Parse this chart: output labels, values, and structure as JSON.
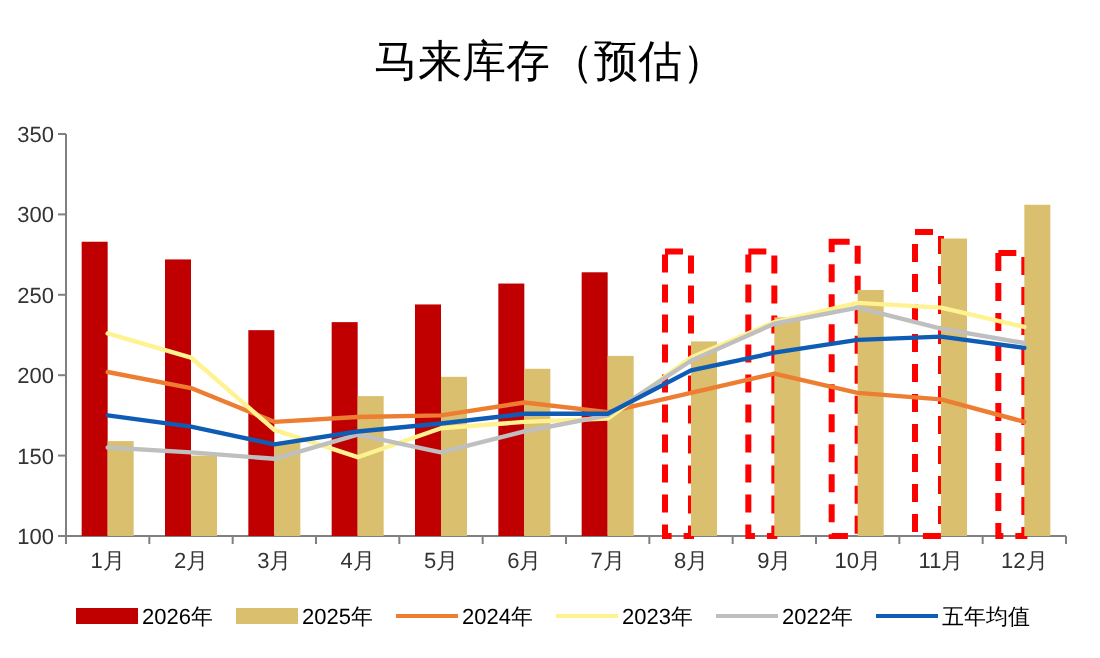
{
  "chart_data": {
    "type": "bar",
    "title": "马来库存（预估）",
    "categories": [
      "1月",
      "2月",
      "3月",
      "4月",
      "5月",
      "6月",
      "7月",
      "8月",
      "9月",
      "10月",
      "11月",
      "12月"
    ],
    "ylim": [
      100,
      350
    ],
    "yticks": [
      100,
      150,
      200,
      250,
      300,
      350
    ],
    "grid": false,
    "legend": "bottom",
    "series": [
      {
        "name": "2026年",
        "color": "#c00000",
        "values": [
          283,
          272,
          228,
          233,
          244,
          257,
          264,
          null,
          null,
          null,
          null,
          null
        ]
      },
      {
        "color": "#ff0000",
        "line_style": "dashed",
        "values": [
          null,
          null,
          null,
          null,
          null,
          null,
          null,
          277,
          277,
          283,
          289,
          276
        ]
      },
      {
        "name": "2025年",
        "color": "#d9bf6e",
        "values": [
          159,
          150,
          158,
          187,
          199,
          204,
          212,
          221,
          236,
          253,
          285,
          306
        ]
      },
      {
        "name": "2024年",
        "type": "line",
        "color": "#ed7d31",
        "values": [
          202,
          192,
          171,
          174,
          175,
          183,
          177,
          189,
          201,
          189,
          185,
          171
        ]
      },
      {
        "name": "2023年",
        "type": "line",
        "color": "#fff291",
        "values": [
          226,
          211,
          166,
          149,
          167,
          171,
          173,
          211,
          233,
          245,
          242,
          230
        ]
      },
      {
        "name": "2022年",
        "type": "line",
        "color": "#bfbfbf",
        "values": [
          155,
          152,
          148,
          163,
          152,
          165,
          175,
          209,
          232,
          242,
          229,
          220
        ]
      },
      {
        "name": "五年均值",
        "type": "line",
        "color": "#0f5cb5",
        "values": [
          175,
          168,
          157,
          165,
          170,
          176,
          176,
          203,
          214,
          222,
          224,
          217
        ]
      }
    ]
  }
}
